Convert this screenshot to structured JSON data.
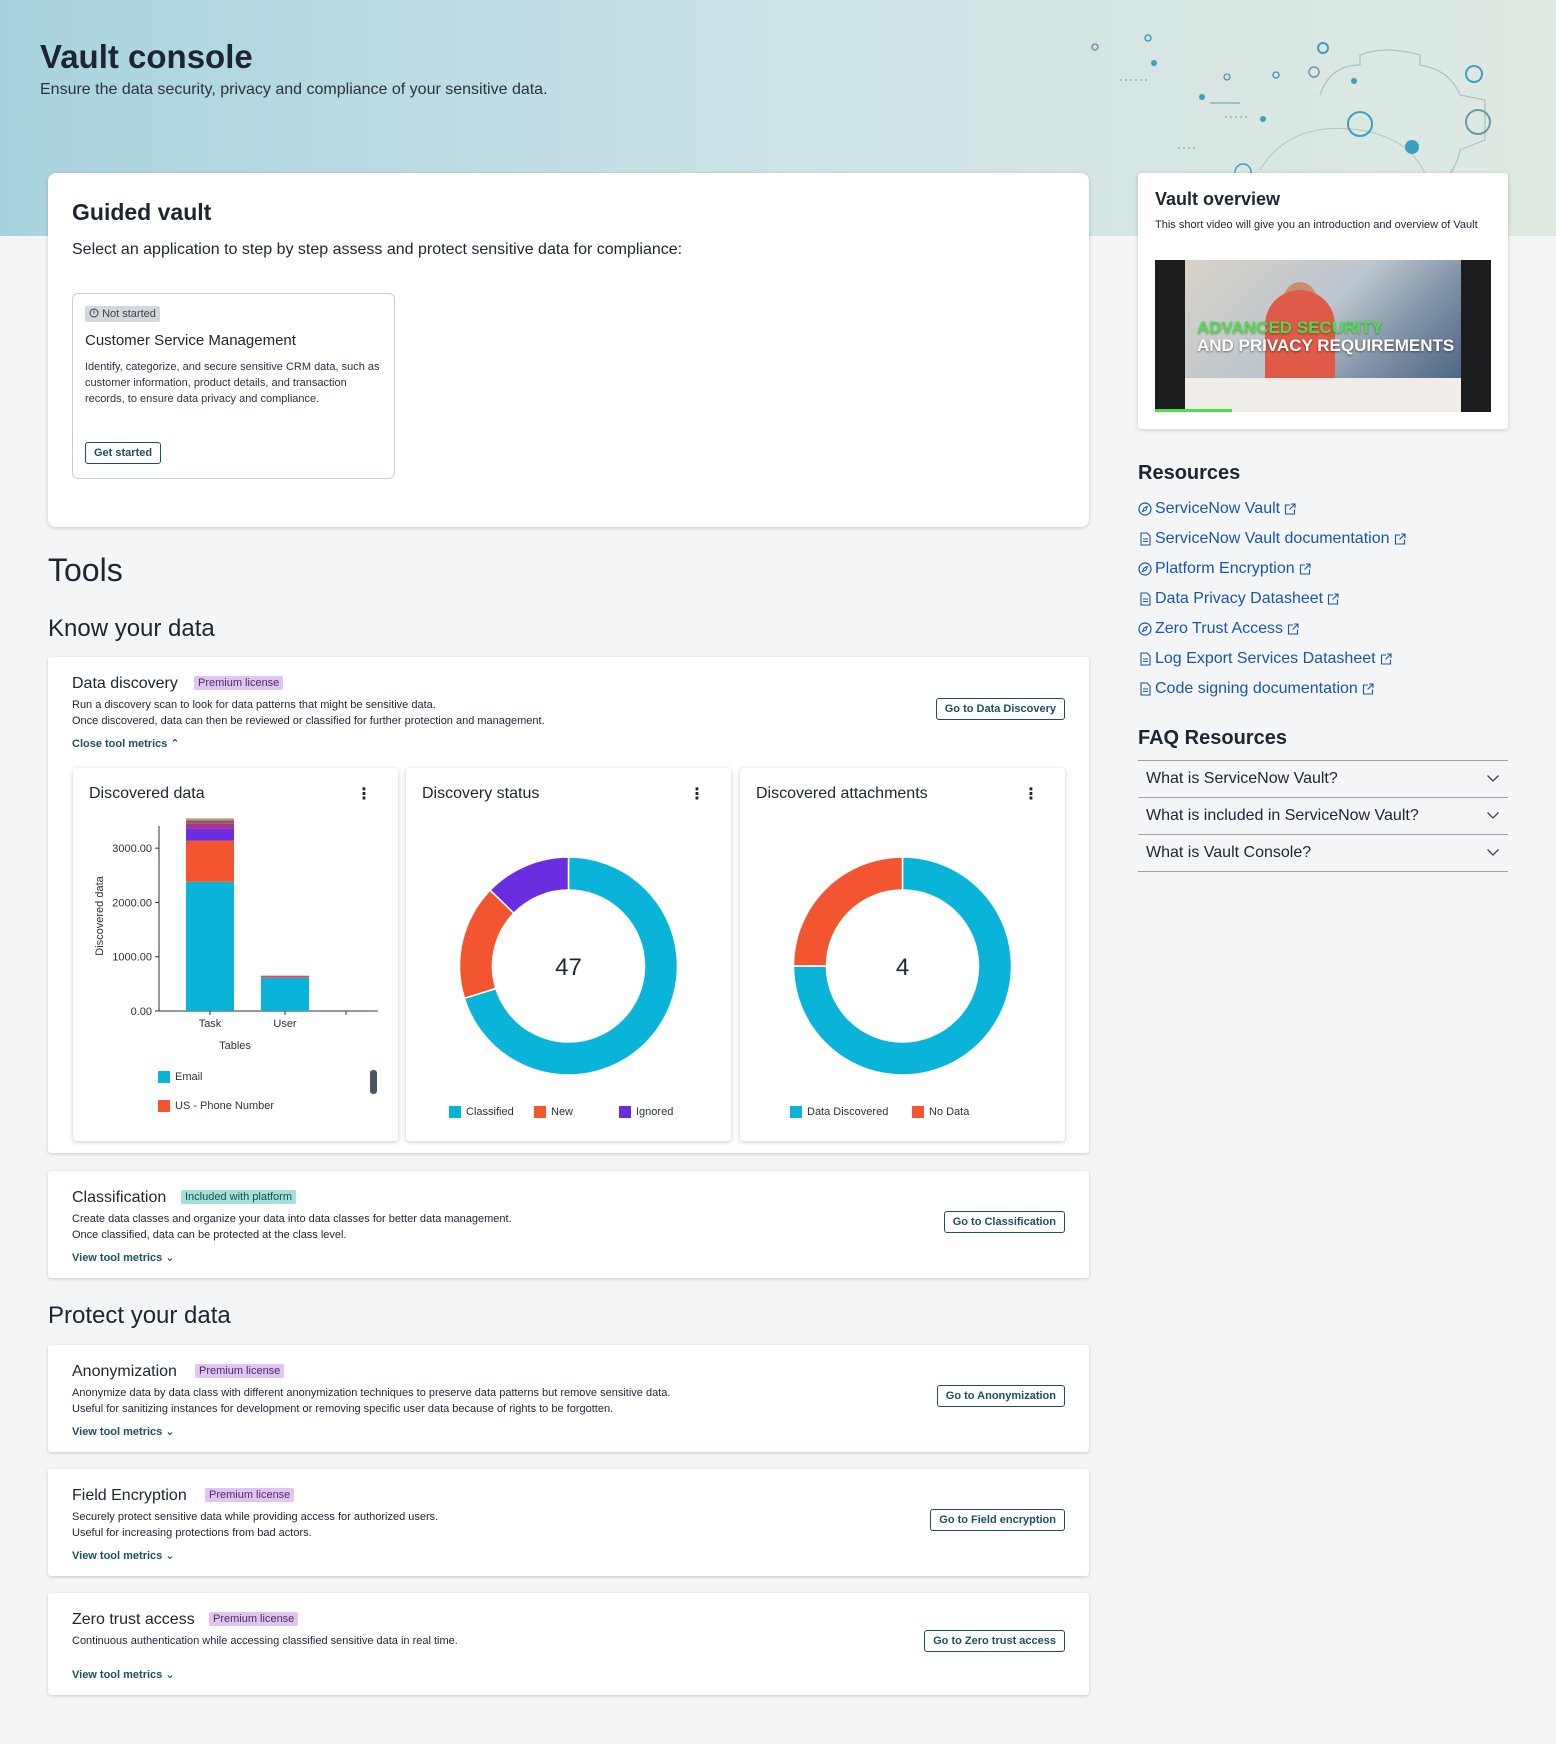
{
  "hero": {
    "title": "Vault console",
    "subtitle": "Ensure the data security, privacy and compliance of your sensitive data."
  },
  "guided": {
    "title": "Guided vault",
    "subtitle": "Select an application to step by step assess and protect sensitive data for compliance:",
    "app": {
      "status": "Not started",
      "title": "Customer Service Management",
      "description": "Identify, categorize, and secure sensitive CRM data, such as customer information, product details, and transaction records, to ensure data privacy and compliance.",
      "button": "Get started"
    }
  },
  "overview": {
    "title": "Vault overview",
    "description": "This short video will give you an introduction and overview of Vault",
    "video_line1": "ADVANCED SECURITY",
    "video_line2": "AND PRIVACY REQUIREMENTS",
    "video_progress": 0.23
  },
  "resources": {
    "title": "Resources",
    "items": [
      {
        "label": "ServiceNow Vault",
        "icon": "compass-icon"
      },
      {
        "label": "ServiceNow Vault documentation",
        "icon": "document-icon"
      },
      {
        "label": "Platform Encryption",
        "icon": "compass-icon"
      },
      {
        "label": "Data Privacy Datasheet",
        "icon": "document-icon"
      },
      {
        "label": "Zero Trust Access",
        "icon": "compass-icon"
      },
      {
        "label": "Log Export Services Datasheet",
        "icon": "document-icon"
      },
      {
        "label": "Code signing documentation",
        "icon": "document-icon"
      }
    ]
  },
  "faq": {
    "title": "FAQ Resources",
    "items": [
      "What is ServiceNow Vault?",
      "What is included in ServiceNow Vault?",
      "What is Vault Console?"
    ]
  },
  "tools": {
    "title": "Tools",
    "know_title": "Know your data",
    "protect_title": "Protect your data",
    "discovery": {
      "name": "Data discovery",
      "badge": "Premium license",
      "desc1": "Run a discovery scan to look for data patterns that might be sensitive data.",
      "desc2": "Once discovered, data can then be reviewed or classified for further protection and management.",
      "link": "Close tool metrics",
      "button": "Go to Data Discovery"
    },
    "classification": {
      "name": "Classification",
      "badge": "Included with platform",
      "desc1": "Create data classes and organize your data into data classes for better data management.",
      "desc2": "Once classified, data can be protected at the class level.",
      "link": "View tool metrics",
      "button": "Go to Classification"
    },
    "anonymization": {
      "name": "Anonymization",
      "badge": "Premium license",
      "desc1": "Anonymize data by data class with different anonymization techniques to preserve data patterns but remove sensitive data.",
      "desc2": "Useful for sanitizing instances for development or removing specific user data because of rights to be forgotten.",
      "link": "View tool metrics",
      "button": "Go to Anonymization"
    },
    "encryption": {
      "name": "Field Encryption",
      "badge": "Premium license",
      "desc1": "Securely protect sensitive data while providing access for authorized users.",
      "desc2": "Useful for increasing protections from bad actors.",
      "link": "View tool metrics",
      "button": "Go to Field encryption"
    },
    "zerotrust": {
      "name": "Zero trust access",
      "badge": "Premium license",
      "desc1": "Continuous authentication while accessing classified sensitive data in real time.",
      "link": "View tool metrics",
      "button": "Go to Zero trust access"
    }
  },
  "metrics": {
    "discovered_data": {
      "title": "Discovered data",
      "menu": "⋮"
    },
    "discovery_status": {
      "title": "Discovery status",
      "menu": "⋮"
    },
    "discovered_attachments": {
      "title": "Discovered attachments",
      "menu": "⋮"
    }
  },
  "colors": {
    "cyan": "#0ab4d8",
    "orange": "#f25530",
    "purple": "#6a2ee0",
    "link": "#1a56a8"
  },
  "chart_data": [
    {
      "type": "bar",
      "stacked": true,
      "title": "Discovered data",
      "xlabel": "Tables",
      "ylabel": "Discovered data",
      "categories": [
        "Task",
        "User"
      ],
      "yticks": [
        "0.00",
        "1000.00",
        "2000.00",
        "3000.00"
      ],
      "ylim": [
        0,
        3500
      ],
      "series": [
        {
          "name": "Email",
          "color": "#0ab4d8",
          "values": [
            2380,
            610
          ]
        },
        {
          "name": "US - Phone Number",
          "color": "#f25530",
          "values": [
            760,
            20
          ]
        },
        {
          "name": "",
          "color": "#6a2ee0",
          "values": [
            220,
            0
          ]
        },
        {
          "name": "",
          "color": "#b03090",
          "values": [
            90,
            20
          ]
        },
        {
          "name": "",
          "color": "#8a5a6a",
          "values": [
            60,
            0
          ]
        },
        {
          "name": "",
          "color": "#c0a080",
          "values": [
            40,
            0
          ]
        }
      ]
    },
    {
      "type": "pie",
      "donut": true,
      "title": "Discovery status",
      "center_label": "47",
      "slices": [
        {
          "label": "Classified",
          "value": 33,
          "color": "#0ab4d8"
        },
        {
          "label": "New",
          "value": 8,
          "color": "#f25530"
        },
        {
          "label": "Ignored",
          "value": 6,
          "color": "#6a2ee0"
        }
      ]
    },
    {
      "type": "pie",
      "donut": true,
      "title": "Discovered attachments",
      "center_label": "4",
      "slices": [
        {
          "label": "Data Discovered",
          "value": 3,
          "color": "#0ab4d8"
        },
        {
          "label": "No Data",
          "value": 1,
          "color": "#f25530"
        }
      ]
    }
  ]
}
